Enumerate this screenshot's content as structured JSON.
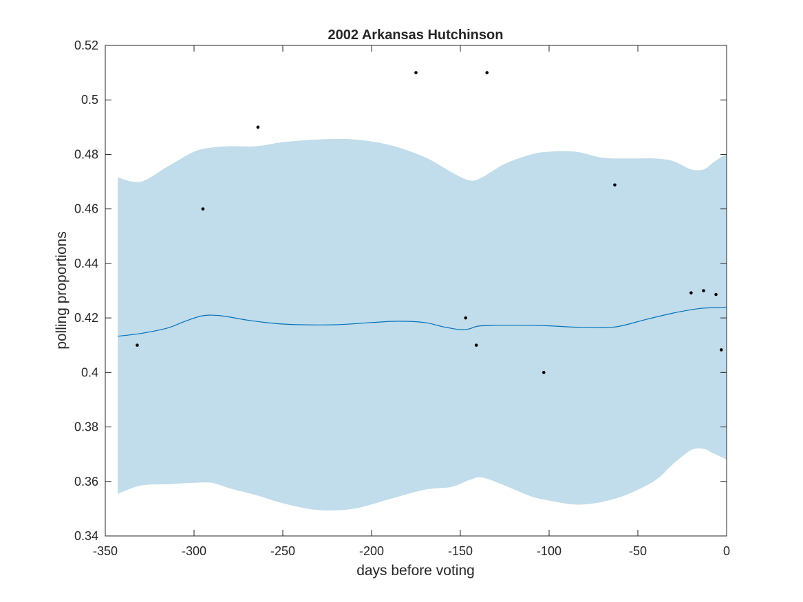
{
  "chart_data": {
    "type": "line",
    "title": "2002 Arkansas Hutchinson",
    "xlabel": "days before voting",
    "ylabel": "polling proportions",
    "xlim": [
      -350,
      0
    ],
    "ylim": [
      0.34,
      0.52
    ],
    "xticks": [
      -350,
      -300,
      -250,
      -200,
      -150,
      -100,
      -50,
      0
    ],
    "xtick_labels": [
      "-350",
      "-300",
      "-250",
      "-200",
      "-150",
      "-100",
      "-50",
      "0"
    ],
    "yticks": [
      0.34,
      0.36,
      0.38,
      0.4,
      0.42,
      0.44,
      0.46,
      0.48,
      0.5,
      0.52
    ],
    "ytick_labels": [
      "0.34",
      "0.36",
      "0.38",
      "0.4",
      "0.42",
      "0.44",
      "0.46",
      "0.48",
      "0.5",
      "0.52"
    ],
    "grid": false,
    "colors": {
      "band": "#c1dcea",
      "line": "#0072bd",
      "points": "#000000",
      "axes": "#262626"
    },
    "band": {
      "x": [
        -343,
        -330,
        -315,
        -300,
        -290,
        -280,
        -265,
        -250,
        -230,
        -210,
        -190,
        -170,
        -155,
        -145,
        -138,
        -125,
        -110,
        -100,
        -85,
        -70,
        -55,
        -40,
        -30,
        -20,
        -13,
        -8,
        -3,
        0
      ],
      "upper": [
        0.4715,
        0.47,
        0.4755,
        0.481,
        0.4825,
        0.483,
        0.483,
        0.4845,
        0.4855,
        0.4855,
        0.4835,
        0.479,
        0.4735,
        0.4705,
        0.4715,
        0.4765,
        0.48,
        0.481,
        0.481,
        0.4788,
        0.4785,
        0.4785,
        0.4775,
        0.4745,
        0.4745,
        0.4768,
        0.479,
        0.48
      ],
      "lower": [
        0.3555,
        0.3585,
        0.359,
        0.3595,
        0.3595,
        0.3575,
        0.355,
        0.352,
        0.3495,
        0.35,
        0.3535,
        0.357,
        0.358,
        0.3605,
        0.3615,
        0.3585,
        0.3545,
        0.353,
        0.3515,
        0.3525,
        0.3555,
        0.3605,
        0.3665,
        0.3715,
        0.372,
        0.3705,
        0.369,
        0.368
      ]
    },
    "series": [
      {
        "x": [
          -343,
          -330,
          -315,
          -305,
          -295,
          -285,
          -270,
          -255,
          -240,
          -220,
          -200,
          -185,
          -170,
          -160,
          -150,
          -145,
          -140,
          -130,
          -115,
          -100,
          -85,
          -70,
          -60,
          -45,
          -30,
          -20,
          -13,
          -5,
          0
        ],
        "values": [
          0.4133,
          0.4143,
          0.4163,
          0.4188,
          0.4208,
          0.4208,
          0.4192,
          0.418,
          0.4175,
          0.4175,
          0.4183,
          0.4188,
          0.4183,
          0.4168,
          0.4157,
          0.416,
          0.417,
          0.4173,
          0.4173,
          0.4171,
          0.4166,
          0.4164,
          0.417,
          0.4195,
          0.4218,
          0.423,
          0.4236,
          0.4238,
          0.424
        ]
      }
    ],
    "points": {
      "x": [
        -332,
        -295,
        -264,
        -175,
        -147,
        -141,
        -135,
        -103,
        -63,
        -20,
        -13,
        -6,
        -3
      ],
      "values": [
        0.41,
        0.46,
        0.49,
        0.51,
        0.42,
        0.41,
        0.51,
        0.4,
        0.4688,
        0.4292,
        0.43,
        0.4286,
        0.4083
      ]
    }
  }
}
